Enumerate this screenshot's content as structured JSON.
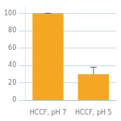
{
  "chart_data": {
    "type": "bar",
    "categories": [
      "HCCF, pH 7",
      "HCCF, pH 5"
    ],
    "values": [
      100,
      30
    ],
    "errors": [
      0,
      8
    ],
    "color": "#F5A623",
    "ylim": [
      0,
      108
    ],
    "yticks": [
      0,
      20,
      40,
      60,
      80,
      100
    ],
    "grid": true
  }
}
